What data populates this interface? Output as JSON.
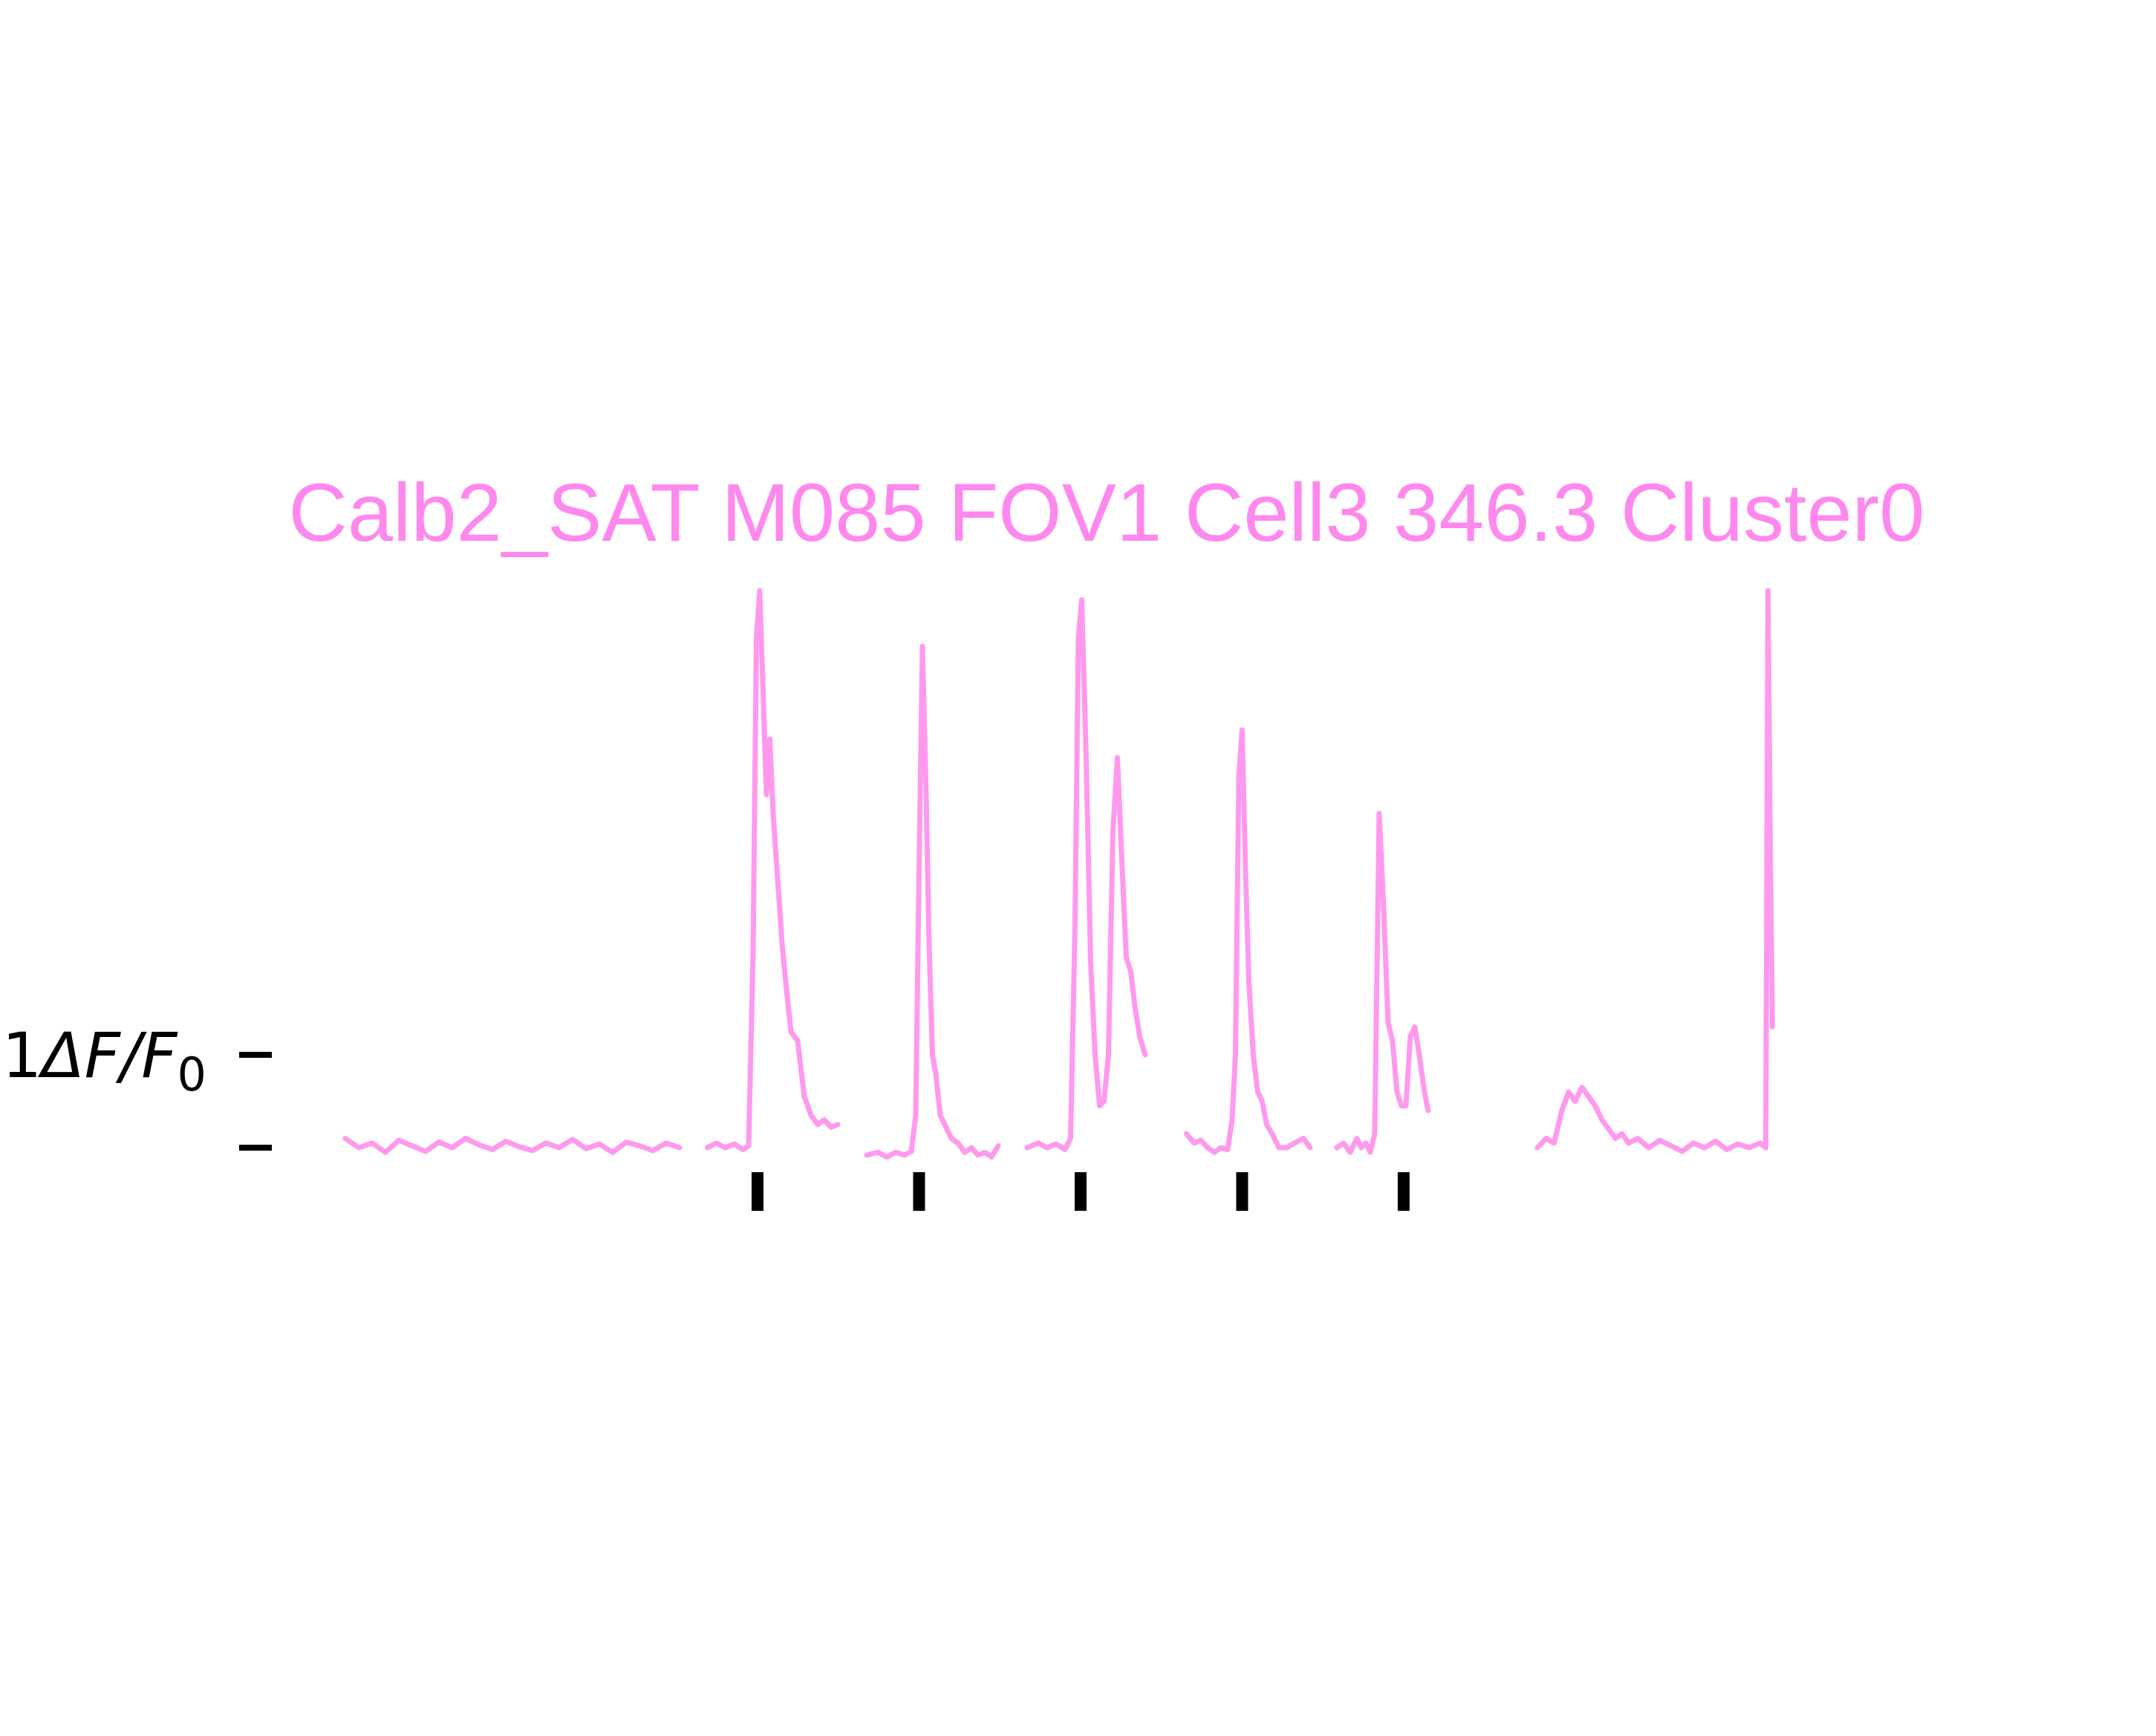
{
  "colors": {
    "trace": "#ff99ee",
    "title": "#ff88ee",
    "marks": "#000000",
    "background": "#ffffff"
  },
  "chart_data": {
    "type": "line",
    "title": "Calb2_SAT M085 FOV1 Cell3 346.3 Cluster0",
    "ylabel_prefix": "1",
    "ylabel_symbol": "ΔF/F",
    "ylabel_subscript": "0",
    "ylabel": "1ΔF/F0",
    "scale_bar_dff": 1,
    "ylim": [
      -0.3,
      6.0
    ],
    "xlim": [
      0,
      1380
    ],
    "axes_visible": false,
    "grid": false,
    "stimulus_markers_x": [
      370,
      515,
      660,
      805,
      950
    ],
    "series": [
      {
        "segment": 1,
        "x": [
          0,
          12,
          24,
          36,
          48,
          60,
          72,
          84,
          96,
          108,
          120,
          132,
          144,
          156,
          168,
          180,
          192,
          204,
          216,
          228,
          240,
          252,
          264,
          276,
          288,
          300
        ],
        "y": [
          0.1,
          0.0,
          0.05,
          -0.05,
          0.08,
          0.02,
          -0.04,
          0.06,
          0.0,
          0.1,
          0.03,
          -0.02,
          0.07,
          0.01,
          -0.03,
          0.05,
          0.0,
          0.09,
          -0.01,
          0.04,
          -0.05,
          0.06,
          0.02,
          -0.03,
          0.05,
          0.0
        ]
      },
      {
        "segment": 2,
        "x": [
          325,
          333,
          341,
          349,
          357,
          362,
          366,
          369,
          372,
          375,
          378,
          381,
          384,
          388,
          392,
          396,
          400,
          406,
          412,
          418,
          424,
          430,
          436,
          442
        ],
        "y": [
          0.0,
          0.05,
          0.0,
          0.04,
          -0.02,
          0.02,
          2.1,
          5.5,
          6.0,
          4.9,
          3.8,
          4.4,
          3.6,
          2.9,
          2.2,
          1.7,
          1.25,
          1.15,
          0.55,
          0.35,
          0.25,
          0.3,
          0.22,
          0.25
        ]
      },
      {
        "segment": 3,
        "x": [
          468,
          478,
          486,
          494,
          502,
          508,
          512,
          515,
          518,
          521,
          524,
          527,
          530,
          534,
          538,
          544,
          550,
          556,
          562,
          568,
          574,
          580,
          586
        ],
        "y": [
          -0.08,
          -0.05,
          -0.1,
          -0.05,
          -0.08,
          -0.04,
          0.35,
          3.0,
          5.4,
          4.0,
          2.2,
          1.0,
          0.8,
          0.35,
          0.25,
          0.1,
          0.05,
          -0.05,
          0.0,
          -0.08,
          -0.05,
          -0.1,
          0.02
        ]
      },
      {
        "segment": 4,
        "x": [
          612,
          622,
          630,
          638,
          646,
          651,
          655,
          658,
          661,
          665,
          669,
          673,
          677,
          681,
          685,
          689,
          693,
          697,
          701,
          705,
          709,
          713,
          718
        ],
        "y": [
          0.0,
          0.05,
          0.0,
          0.04,
          -0.02,
          0.1,
          2.4,
          5.5,
          5.9,
          4.2,
          2.0,
          1.0,
          0.45,
          0.5,
          1.0,
          3.4,
          4.2,
          3.1,
          2.05,
          1.9,
          1.5,
          1.2,
          1.0
        ]
      },
      {
        "segment": 5,
        "x": [
          755,
          762,
          768,
          774,
          780,
          786,
          792,
          796,
          799,
          802,
          805,
          808,
          811,
          815,
          819,
          823,
          827,
          832,
          838,
          845,
          852,
          860,
          866
        ],
        "y": [
          0.15,
          0.05,
          0.08,
          0.0,
          -0.05,
          0.0,
          -0.02,
          0.3,
          1.0,
          4.0,
          4.5,
          3.0,
          1.8,
          1.0,
          0.6,
          0.5,
          0.25,
          0.15,
          0.0,
          0.0,
          0.05,
          0.1,
          0.0
        ]
      },
      {
        "segment": 6,
        "x": [
          890,
          896,
          902,
          908,
          912,
          916,
          920,
          924,
          928,
          932,
          936,
          940,
          944,
          948,
          952,
          956,
          960,
          964,
          968,
          972
        ],
        "y": [
          0.0,
          0.05,
          -0.05,
          0.1,
          0.0,
          0.05,
          -0.05,
          0.15,
          3.6,
          2.6,
          1.35,
          1.15,
          0.6,
          0.45,
          0.45,
          1.2,
          1.3,
          1.0,
          0.65,
          0.4
        ]
      },
      {
        "segment": 7,
        "x": [
          1070,
          1078,
          1085,
          1092,
          1098,
          1104,
          1110,
          1116,
          1122,
          1128,
          1134,
          1140,
          1146,
          1152,
          1160,
          1170,
          1180,
          1190,
          1200,
          1210,
          1220,
          1230,
          1240,
          1250,
          1260,
          1270,
          1275,
          1277,
          1279,
          1281
        ],
        "y": [
          0.0,
          0.1,
          0.05,
          0.4,
          0.6,
          0.5,
          0.65,
          0.55,
          0.45,
          0.3,
          0.2,
          0.1,
          0.15,
          0.05,
          0.1,
          0.0,
          0.08,
          0.02,
          -0.04,
          0.05,
          0.0,
          0.07,
          -0.02,
          0.04,
          0.0,
          0.05,
          0.0,
          6.0,
          3.3,
          1.3
        ]
      }
    ]
  }
}
